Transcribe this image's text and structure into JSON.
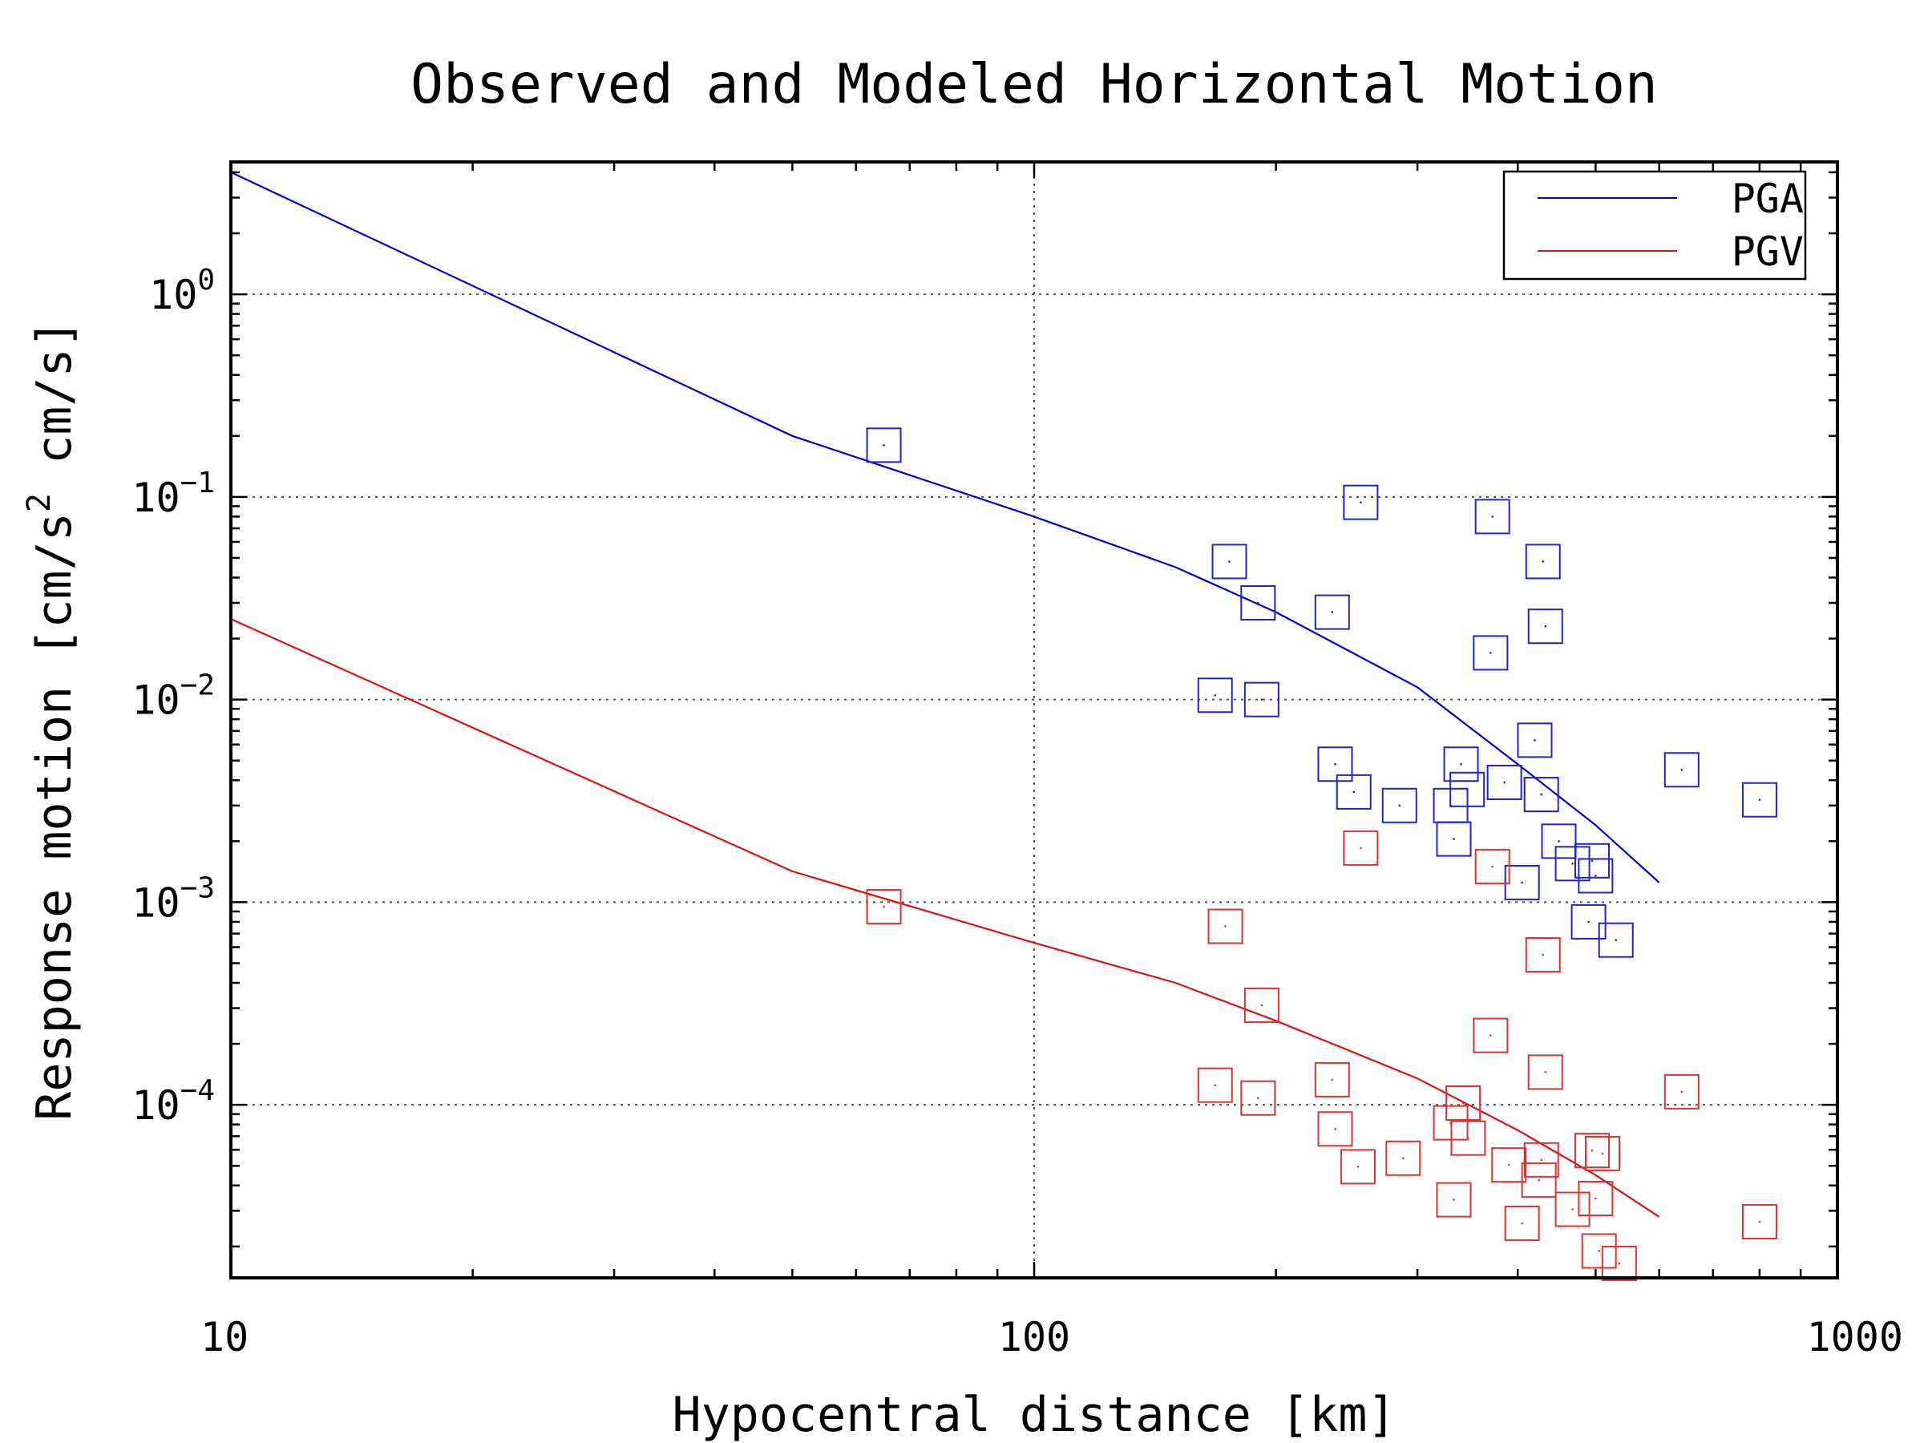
{
  "chart_data": {
    "type": "scatter",
    "title": "Observed and Modeled Horizontal Motion",
    "xlabel": "Hypocentral distance [km]",
    "ylabel_parts": [
      "Response motion [cm/s",
      "2",
      " cm/s]"
    ],
    "xscale": "log",
    "yscale": "log",
    "xlim": [
      10,
      1000
    ],
    "ylim": [
      1.4e-05,
      4.5
    ],
    "x_ticks": [
      {
        "value": 10,
        "label": "10"
      },
      {
        "value": 100,
        "label": "100"
      },
      {
        "value": 1000,
        "label": "1000"
      }
    ],
    "y_ticks": [
      {
        "value": 1,
        "base": "10",
        "exp": "0"
      },
      {
        "value": 0.1,
        "base": "10",
        "exp": "−1"
      },
      {
        "value": 0.01,
        "base": "10",
        "exp": "−2"
      },
      {
        "value": 0.001,
        "base": "10",
        "exp": "−3"
      },
      {
        "value": 0.0001,
        "base": "10",
        "exp": "−4"
      }
    ],
    "grid": true,
    "legend_position": "top-right",
    "series": [
      {
        "name": "PGA",
        "kind": "model-line",
        "color": "#0000cc",
        "x": [
          10,
          50,
          100,
          150,
          200,
          300,
          400,
          500,
          600
        ],
        "y": [
          4.0,
          0.2,
          0.08,
          0.045,
          0.027,
          0.0115,
          0.0048,
          0.0024,
          0.00125
        ]
      },
      {
        "name": "PGV",
        "kind": "model-line",
        "color": "#dd1111",
        "x": [
          10,
          50,
          100,
          150,
          200,
          300,
          400,
          500,
          600
        ],
        "y": [
          0.025,
          0.00142,
          0.00063,
          0.0004,
          0.00026,
          0.000135,
          7.5e-05,
          4.5e-05,
          2.8e-05
        ]
      },
      {
        "kind": "observed-markers",
        "marker": "square",
        "color": "#2222cc",
        "x": [
          65,
          168,
          175,
          190,
          192,
          235,
          237,
          250,
          255,
          285,
          330,
          333,
          340,
          346,
          370,
          372,
          385,
          405,
          420,
          428,
          430,
          433,
          450,
          468,
          490,
          495,
          500,
          530,
          640,
          800
        ],
        "y": [
          0.18,
          0.0105,
          0.048,
          0.03,
          0.01,
          0.027,
          0.0048,
          0.0035,
          0.094,
          0.003,
          0.003,
          0.00205,
          0.0048,
          0.0036,
          0.017,
          0.08,
          0.0039,
          0.00125,
          0.0063,
          0.0034,
          0.048,
          0.023,
          0.002,
          0.00155,
          0.0008,
          0.0016,
          0.00135,
          0.00065,
          0.0045,
          0.0032
        ]
      },
      {
        "kind": "observed-markers",
        "marker": "square",
        "color": "#dd3333",
        "x": [
          65,
          168,
          173,
          190,
          192,
          235,
          237,
          253,
          255,
          288,
          330,
          333,
          342,
          347,
          370,
          372,
          390,
          405,
          425,
          428,
          430,
          433,
          468,
          495,
          500,
          505,
          510,
          535,
          640,
          800
        ],
        "y": [
          0.00095,
          0.000125,
          0.00076,
          0.000108,
          0.00031,
          0.000133,
          7.6e-05,
          4.95e-05,
          0.00185,
          5.45e-05,
          8.15e-05,
          3.4e-05,
          0.000102,
          6.85e-05,
          0.00022,
          0.0015,
          5.05e-05,
          2.6e-05,
          4.25e-05,
          5.35e-05,
          0.00055,
          0.000145,
          3.05e-05,
          5.95e-05,
          3.45e-05,
          1.9e-05,
          5.75e-05,
          1.65e-05,
          0.000116,
          2.65e-05
        ]
      }
    ]
  }
}
